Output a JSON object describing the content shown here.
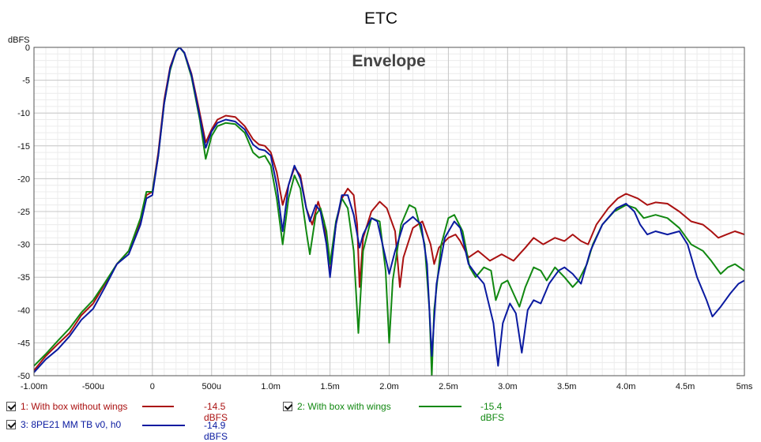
{
  "chart_data": {
    "type": "line",
    "title": "ETC",
    "annotation": "Envelope",
    "ylabel": "dBFS",
    "xlabel": "",
    "xlim": [
      -1.0,
      5.0
    ],
    "ylim": [
      -50,
      0
    ],
    "x_ticks": [
      {
        "v": -1.0,
        "label": "-1.00m"
      },
      {
        "v": -0.5,
        "label": "-500u"
      },
      {
        "v": 0.0,
        "label": "0"
      },
      {
        "v": 0.5,
        "label": "500u"
      },
      {
        "v": 1.0,
        "label": "1.0m"
      },
      {
        "v": 1.5,
        "label": "1.5m"
      },
      {
        "v": 2.0,
        "label": "2.0m"
      },
      {
        "v": 2.5,
        "label": "2.5m"
      },
      {
        "v": 3.0,
        "label": "3.0m"
      },
      {
        "v": 3.5,
        "label": "3.5m"
      },
      {
        "v": 4.0,
        "label": "4.0m"
      },
      {
        "v": 4.5,
        "label": "4.5m"
      },
      {
        "v": 5.0,
        "label": "5ms"
      }
    ],
    "y_ticks": [
      {
        "v": 0,
        "label": "0"
      },
      {
        "v": -5,
        "label": "-5"
      },
      {
        "v": -10,
        "label": "-10"
      },
      {
        "v": -15,
        "label": "-15"
      },
      {
        "v": -20,
        "label": "-20"
      },
      {
        "v": -25,
        "label": "-25"
      },
      {
        "v": -30,
        "label": "-30"
      },
      {
        "v": -35,
        "label": "-35"
      },
      {
        "v": -40,
        "label": "-40"
      },
      {
        "v": -45,
        "label": "-45"
      },
      {
        "v": -50,
        "label": "-50"
      }
    ],
    "grid": true,
    "series": [
      {
        "name": "1: With box without wings",
        "legend_value": "-14.5 dBFS",
        "color": "#aa1111",
        "points": [
          [
            -1.0,
            -49.2
          ],
          [
            -0.9,
            -47.0
          ],
          [
            -0.8,
            -45.2
          ],
          [
            -0.7,
            -43.5
          ],
          [
            -0.6,
            -40.8
          ],
          [
            -0.5,
            -39.0
          ],
          [
            -0.4,
            -36.0
          ],
          [
            -0.3,
            -33.0
          ],
          [
            -0.2,
            -31.0
          ],
          [
            -0.1,
            -26.5
          ],
          [
            -0.05,
            -22.5
          ],
          [
            0.0,
            -22.0
          ],
          [
            0.05,
            -16.0
          ],
          [
            0.1,
            -8.0
          ],
          [
            0.15,
            -3.0
          ],
          [
            0.2,
            -0.5
          ],
          [
            0.23,
            0.0
          ],
          [
            0.27,
            -0.8
          ],
          [
            0.33,
            -4.0
          ],
          [
            0.4,
            -10.0
          ],
          [
            0.45,
            -14.5
          ],
          [
            0.5,
            -12.5
          ],
          [
            0.55,
            -11.0
          ],
          [
            0.62,
            -10.4
          ],
          [
            0.7,
            -10.6
          ],
          [
            0.78,
            -12.0
          ],
          [
            0.85,
            -14.0
          ],
          [
            0.9,
            -14.8
          ],
          [
            0.95,
            -15.0
          ],
          [
            1.0,
            -16.0
          ],
          [
            1.05,
            -19.0
          ],
          [
            1.1,
            -24.0
          ],
          [
            1.15,
            -21.0
          ],
          [
            1.2,
            -18.3
          ],
          [
            1.25,
            -19.5
          ],
          [
            1.3,
            -24.5
          ],
          [
            1.35,
            -27.0
          ],
          [
            1.4,
            -23.5
          ],
          [
            1.45,
            -26.5
          ],
          [
            1.5,
            -34.5
          ],
          [
            1.55,
            -27.0
          ],
          [
            1.6,
            -23.0
          ],
          [
            1.65,
            -21.5
          ],
          [
            1.7,
            -22.5
          ],
          [
            1.73,
            -27.0
          ],
          [
            1.75,
            -36.5
          ],
          [
            1.78,
            -29.0
          ],
          [
            1.85,
            -25.0
          ],
          [
            1.92,
            -23.5
          ],
          [
            1.98,
            -24.5
          ],
          [
            2.05,
            -28.0
          ],
          [
            2.09,
            -36.5
          ],
          [
            2.12,
            -32.0
          ],
          [
            2.2,
            -27.5
          ],
          [
            2.28,
            -26.5
          ],
          [
            2.35,
            -30.0
          ],
          [
            2.38,
            -33.0
          ],
          [
            2.42,
            -30.5
          ],
          [
            2.5,
            -29.0
          ],
          [
            2.56,
            -28.5
          ],
          [
            2.6,
            -29.5
          ],
          [
            2.67,
            -32.0
          ],
          [
            2.75,
            -31.0
          ],
          [
            2.85,
            -32.5
          ],
          [
            2.95,
            -31.5
          ],
          [
            3.05,
            -32.5
          ],
          [
            3.1,
            -31.5
          ],
          [
            3.15,
            -30.5
          ],
          [
            3.22,
            -29.0
          ],
          [
            3.3,
            -30.0
          ],
          [
            3.4,
            -29.0
          ],
          [
            3.48,
            -29.5
          ],
          [
            3.55,
            -28.5
          ],
          [
            3.62,
            -29.5
          ],
          [
            3.68,
            -30.0
          ],
          [
            3.75,
            -27.0
          ],
          [
            3.85,
            -24.5
          ],
          [
            3.93,
            -23.0
          ],
          [
            4.0,
            -22.3
          ],
          [
            4.1,
            -23.0
          ],
          [
            4.18,
            -24.0
          ],
          [
            4.25,
            -23.6
          ],
          [
            4.35,
            -23.8
          ],
          [
            4.45,
            -25.0
          ],
          [
            4.55,
            -26.5
          ],
          [
            4.65,
            -27.0
          ],
          [
            4.72,
            -28.0
          ],
          [
            4.78,
            -29.0
          ],
          [
            4.85,
            -28.5
          ],
          [
            4.92,
            -28.0
          ],
          [
            5.0,
            -28.5
          ]
        ]
      },
      {
        "name": "2: With box with wings",
        "legend_value": "-15.4 dBFS",
        "color": "#118811",
        "points": [
          [
            -1.0,
            -48.5
          ],
          [
            -0.9,
            -46.7
          ],
          [
            -0.8,
            -44.7
          ],
          [
            -0.7,
            -42.8
          ],
          [
            -0.6,
            -40.4
          ],
          [
            -0.5,
            -38.5
          ],
          [
            -0.4,
            -35.8
          ],
          [
            -0.3,
            -33.0
          ],
          [
            -0.2,
            -31.0
          ],
          [
            -0.1,
            -26.0
          ],
          [
            -0.05,
            -22.0
          ],
          [
            0.0,
            -22.0
          ],
          [
            0.05,
            -16.5
          ],
          [
            0.1,
            -8.5
          ],
          [
            0.15,
            -3.5
          ],
          [
            0.2,
            -0.5
          ],
          [
            0.23,
            0.0
          ],
          [
            0.27,
            -0.9
          ],
          [
            0.33,
            -4.5
          ],
          [
            0.4,
            -11.0
          ],
          [
            0.45,
            -17.0
          ],
          [
            0.5,
            -13.5
          ],
          [
            0.55,
            -12.0
          ],
          [
            0.62,
            -11.5
          ],
          [
            0.7,
            -11.7
          ],
          [
            0.78,
            -13.0
          ],
          [
            0.85,
            -16.0
          ],
          [
            0.9,
            -16.8
          ],
          [
            0.95,
            -16.5
          ],
          [
            1.0,
            -18.0
          ],
          [
            1.05,
            -23.0
          ],
          [
            1.1,
            -30.0
          ],
          [
            1.15,
            -23.0
          ],
          [
            1.2,
            -19.5
          ],
          [
            1.25,
            -21.5
          ],
          [
            1.3,
            -28.0
          ],
          [
            1.33,
            -31.5
          ],
          [
            1.38,
            -25.5
          ],
          [
            1.42,
            -24.5
          ],
          [
            1.47,
            -28.0
          ],
          [
            1.5,
            -33.0
          ],
          [
            1.55,
            -26.5
          ],
          [
            1.6,
            -23.0
          ],
          [
            1.65,
            -24.5
          ],
          [
            1.7,
            -31.0
          ],
          [
            1.74,
            -43.5
          ],
          [
            1.78,
            -31.0
          ],
          [
            1.85,
            -26.0
          ],
          [
            1.92,
            -26.5
          ],
          [
            1.97,
            -34.0
          ],
          [
            2.0,
            -45.0
          ],
          [
            2.03,
            -35.5
          ],
          [
            2.1,
            -27.0
          ],
          [
            2.17,
            -24.0
          ],
          [
            2.22,
            -24.5
          ],
          [
            2.3,
            -30.0
          ],
          [
            2.34,
            -40.0
          ],
          [
            2.36,
            -50.0
          ],
          [
            2.38,
            -40.0
          ],
          [
            2.44,
            -30.0
          ],
          [
            2.5,
            -26.0
          ],
          [
            2.55,
            -25.5
          ],
          [
            2.62,
            -28.0
          ],
          [
            2.68,
            -33.5
          ],
          [
            2.73,
            -35.0
          ],
          [
            2.8,
            -33.5
          ],
          [
            2.86,
            -34.0
          ],
          [
            2.9,
            -38.5
          ],
          [
            2.95,
            -36.0
          ],
          [
            3.0,
            -35.5
          ],
          [
            3.05,
            -37.5
          ],
          [
            3.1,
            -39.5
          ],
          [
            3.15,
            -36.5
          ],
          [
            3.22,
            -33.5
          ],
          [
            3.28,
            -34.0
          ],
          [
            3.33,
            -35.5
          ],
          [
            3.4,
            -33.5
          ],
          [
            3.48,
            -35.0
          ],
          [
            3.55,
            -36.5
          ],
          [
            3.6,
            -35.5
          ],
          [
            3.67,
            -33.0
          ],
          [
            3.72,
            -30.0
          ],
          [
            3.8,
            -27.0
          ],
          [
            3.9,
            -25.0
          ],
          [
            4.0,
            -24.0
          ],
          [
            4.08,
            -24.5
          ],
          [
            4.15,
            -26.0
          ],
          [
            4.25,
            -25.5
          ],
          [
            4.35,
            -26.0
          ],
          [
            4.45,
            -27.5
          ],
          [
            4.55,
            -30.0
          ],
          [
            4.65,
            -31.0
          ],
          [
            4.72,
            -32.5
          ],
          [
            4.8,
            -34.5
          ],
          [
            4.86,
            -33.5
          ],
          [
            4.92,
            -33.0
          ],
          [
            5.0,
            -34.0
          ]
        ]
      },
      {
        "name": "3: 8PE21 MM TB v0, h0",
        "legend_value": "-14.9 dBFS",
        "color": "#0a1aa0",
        "points": [
          [
            -1.0,
            -49.5
          ],
          [
            -0.9,
            -47.5
          ],
          [
            -0.8,
            -46.0
          ],
          [
            -0.7,
            -44.0
          ],
          [
            -0.6,
            -41.5
          ],
          [
            -0.5,
            -39.8
          ],
          [
            -0.4,
            -36.5
          ],
          [
            -0.3,
            -33.0
          ],
          [
            -0.2,
            -31.5
          ],
          [
            -0.1,
            -27.0
          ],
          [
            -0.05,
            -23.0
          ],
          [
            0.0,
            -22.5
          ],
          [
            0.05,
            -16.5
          ],
          [
            0.1,
            -8.5
          ],
          [
            0.15,
            -3.2
          ],
          [
            0.2,
            -0.6
          ],
          [
            0.23,
            0.0
          ],
          [
            0.27,
            -0.8
          ],
          [
            0.33,
            -4.2
          ],
          [
            0.4,
            -10.5
          ],
          [
            0.45,
            -15.3
          ],
          [
            0.5,
            -12.8
          ],
          [
            0.55,
            -11.5
          ],
          [
            0.62,
            -11.0
          ],
          [
            0.7,
            -11.3
          ],
          [
            0.78,
            -12.5
          ],
          [
            0.85,
            -14.8
          ],
          [
            0.9,
            -15.5
          ],
          [
            0.95,
            -15.7
          ],
          [
            1.0,
            -16.5
          ],
          [
            1.05,
            -21.0
          ],
          [
            1.1,
            -28.0
          ],
          [
            1.15,
            -21.0
          ],
          [
            1.2,
            -18.0
          ],
          [
            1.25,
            -20.0
          ],
          [
            1.3,
            -24.5
          ],
          [
            1.33,
            -26.5
          ],
          [
            1.38,
            -24.0
          ],
          [
            1.42,
            -25.0
          ],
          [
            1.47,
            -30.0
          ],
          [
            1.5,
            -35.0
          ],
          [
            1.55,
            -27.0
          ],
          [
            1.6,
            -22.5
          ],
          [
            1.65,
            -22.5
          ],
          [
            1.7,
            -25.5
          ],
          [
            1.75,
            -30.5
          ],
          [
            1.78,
            -28.5
          ],
          [
            1.85,
            -26.0
          ],
          [
            1.9,
            -26.5
          ],
          [
            1.95,
            -30.5
          ],
          [
            2.0,
            -34.5
          ],
          [
            2.05,
            -31.0
          ],
          [
            2.12,
            -27.0
          ],
          [
            2.2,
            -25.8
          ],
          [
            2.27,
            -27.0
          ],
          [
            2.32,
            -33.0
          ],
          [
            2.36,
            -47.0
          ],
          [
            2.4,
            -36.0
          ],
          [
            2.47,
            -29.0
          ],
          [
            2.55,
            -26.5
          ],
          [
            2.6,
            -27.5
          ],
          [
            2.67,
            -33.0
          ],
          [
            2.73,
            -34.5
          ],
          [
            2.8,
            -36.0
          ],
          [
            2.88,
            -42.0
          ],
          [
            2.92,
            -48.5
          ],
          [
            2.96,
            -42.0
          ],
          [
            3.02,
            -39.0
          ],
          [
            3.07,
            -40.5
          ],
          [
            3.12,
            -46.5
          ],
          [
            3.17,
            -40.0
          ],
          [
            3.22,
            -38.5
          ],
          [
            3.28,
            -39.0
          ],
          [
            3.35,
            -36.0
          ],
          [
            3.43,
            -34.0
          ],
          [
            3.48,
            -33.5
          ],
          [
            3.55,
            -34.5
          ],
          [
            3.62,
            -36.0
          ],
          [
            3.7,
            -31.0
          ],
          [
            3.8,
            -27.0
          ],
          [
            3.92,
            -24.5
          ],
          [
            4.0,
            -23.8
          ],
          [
            4.07,
            -25.0
          ],
          [
            4.12,
            -27.0
          ],
          [
            4.18,
            -28.5
          ],
          [
            4.25,
            -28.0
          ],
          [
            4.35,
            -28.5
          ],
          [
            4.45,
            -28.0
          ],
          [
            4.52,
            -30.0
          ],
          [
            4.6,
            -35.0
          ],
          [
            4.68,
            -38.5
          ],
          [
            4.73,
            -41.0
          ],
          [
            4.8,
            -39.5
          ],
          [
            4.88,
            -37.5
          ],
          [
            4.95,
            -36.0
          ],
          [
            5.0,
            -35.5
          ]
        ]
      }
    ]
  }
}
